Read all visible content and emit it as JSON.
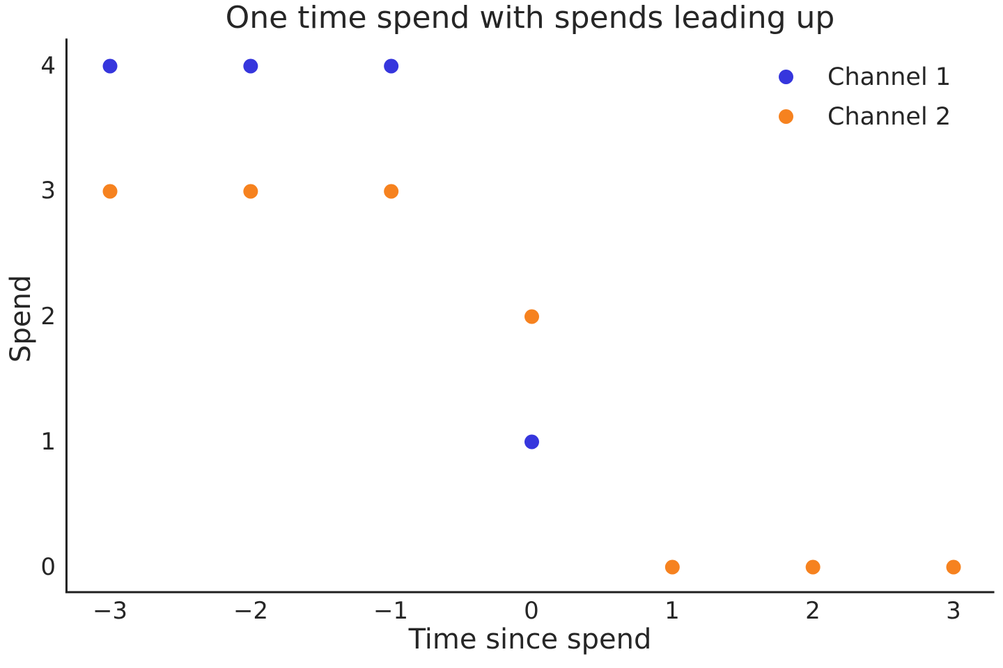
{
  "chart_data": {
    "type": "scatter",
    "title": "One time spend with spends leading up",
    "xlabel": "Time since spend",
    "ylabel": "Spend",
    "xlim": [
      -3.31,
      3.29
    ],
    "ylim": [
      -0.2,
      4.22
    ],
    "grid": false,
    "legend_position": "upper right",
    "xticks": [
      -3,
      -2,
      -1,
      0,
      1,
      2,
      3
    ],
    "xticklabels": [
      "−3",
      "−2",
      "−1",
      "0",
      "1",
      "2",
      "3"
    ],
    "yticks": [
      0,
      1,
      2,
      3,
      4
    ],
    "yticklabels": [
      "0",
      "1",
      "2",
      "3",
      "4"
    ],
    "series": [
      {
        "name": "Channel 1",
        "color": "#3636dd",
        "points": [
          [
            -3,
            4
          ],
          [
            -2,
            4
          ],
          [
            -1,
            4
          ],
          [
            0,
            1
          ]
        ]
      },
      {
        "name": "Channel 2",
        "color": "#f6821f",
        "points": [
          [
            -3,
            3
          ],
          [
            -2,
            3
          ],
          [
            -1,
            3
          ],
          [
            0,
            2
          ],
          [
            1,
            0
          ],
          [
            2,
            0
          ],
          [
            3,
            0
          ]
        ]
      }
    ],
    "marker_radius_px": 10.5,
    "text_color": "#262626",
    "spine_color": "#1f1f1f"
  }
}
